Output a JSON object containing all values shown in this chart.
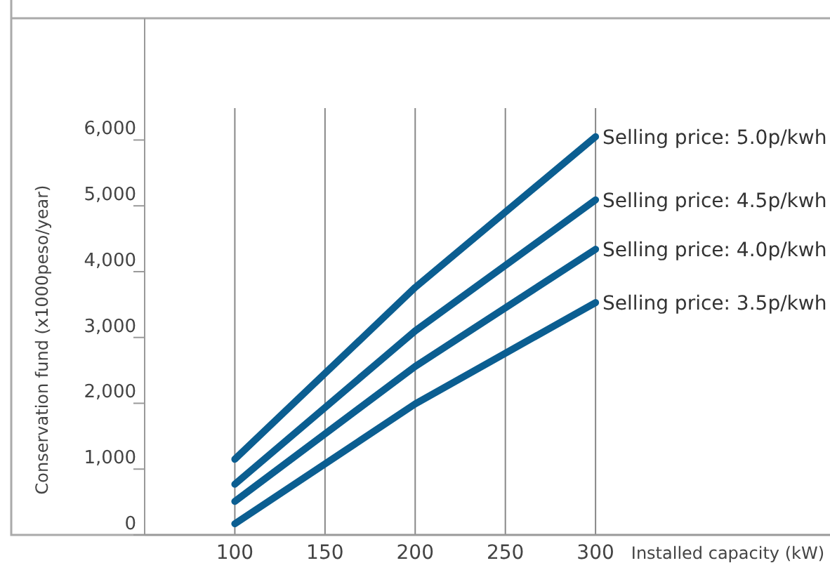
{
  "chart_data": {
    "type": "line",
    "xlabel": "Installed capacity (kW)",
    "ylabel": "Conservation fund (x1000peso/year)",
    "x": [
      100,
      200,
      300
    ],
    "series": [
      {
        "name": "Selling price: 5.0p/kwh",
        "color": "#0b5e91",
        "values": [
          1150,
          3760,
          6050
        ]
      },
      {
        "name": "Selling price: 4.5p/kwh",
        "color": "#0b5e91",
        "values": [
          770,
          3100,
          5090
        ]
      },
      {
        "name": "Selling price: 4.0p/kwh",
        "color": "#0b5e91",
        "values": [
          510,
          2560,
          4340
        ]
      },
      {
        "name": "Selling price: 3.5p/kwh",
        "color": "#0b5e91",
        "values": [
          170,
          1990,
          3530
        ]
      }
    ],
    "xlim": [
      50,
      430
    ],
    "xticks": [
      100,
      150,
      200,
      250,
      300
    ],
    "ylim": [
      0,
      7850
    ],
    "yticks": [
      0,
      {
        "value": 1000,
        "label": "1,000"
      },
      {
        "value": 2000,
        "label": "2,000"
      },
      {
        "value": 3000,
        "label": "3,000"
      },
      {
        "value": 4000,
        "label": "4,000"
      },
      {
        "value": 5000,
        "label": "5,000"
      },
      {
        "value": 6000,
        "label": "6,000"
      }
    ],
    "grid": "x",
    "marker": "none",
    "line_style": "solid"
  }
}
